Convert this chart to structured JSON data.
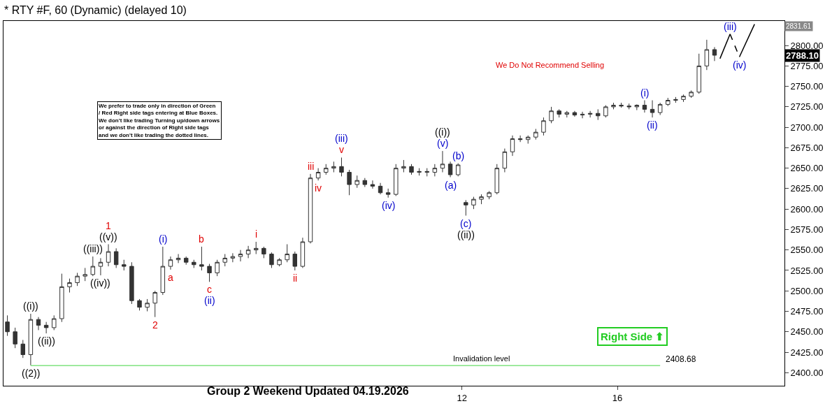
{
  "chart_data": {
    "type": "candlestick",
    "title": "* RTY #F, 60 (Dynamic) (delayed 10)",
    "x": [
      0.3,
      0.5,
      0.7,
      0.9,
      1.1,
      1.3,
      1.5,
      1.7,
      1.9,
      2.1,
      2.3,
      2.5,
      2.7,
      2.9,
      3.1,
      3.3,
      3.5,
      3.7,
      3.9,
      4.1,
      4.3,
      4.5,
      4.7,
      4.9,
      5.1,
      5.3,
      5.5,
      5.7,
      5.9,
      6.1,
      6.3,
      6.5,
      6.7,
      6.9,
      7.1,
      7.3,
      7.5,
      7.7,
      7.9,
      8.1,
      8.3,
      8.5,
      8.7,
      8.9,
      9.1,
      9.3,
      9.5,
      9.7,
      9.9,
      10.1,
      10.3,
      10.5,
      10.7,
      10.9,
      11.1,
      11.3,
      11.5,
      11.7,
      11.9,
      12.1,
      12.3,
      12.5,
      12.7,
      12.9,
      13.1,
      13.3,
      13.5,
      13.7,
      13.9,
      14.1,
      14.3,
      14.5,
      14.7,
      14.9,
      15.1,
      15.3,
      15.5,
      15.7,
      15.9,
      16.1,
      16.3,
      16.5,
      16.7,
      16.9,
      17.1,
      17.3,
      17.5,
      17.7,
      17.9,
      18.1,
      18.3,
      18.5
    ],
    "ohlc": [
      [
        2462,
        2470,
        2445,
        2450
      ],
      [
        2450,
        2455,
        2430,
        2435
      ],
      [
        2435,
        2440,
        2418,
        2422
      ],
      [
        2422,
        2472,
        2409,
        2465
      ],
      [
        2465,
        2468,
        2452,
        2458
      ],
      [
        2458,
        2462,
        2448,
        2455
      ],
      [
        2455,
        2470,
        2452,
        2466
      ],
      [
        2466,
        2521,
        2462,
        2505
      ],
      [
        2505,
        2515,
        2498,
        2510
      ],
      [
        2510,
        2522,
        2506,
        2518
      ],
      [
        2518,
        2528,
        2512,
        2520
      ],
      [
        2520,
        2542,
        2518,
        2530
      ],
      [
        2530,
        2540,
        2519,
        2535
      ],
      [
        2535,
        2557,
        2530,
        2548
      ],
      [
        2548,
        2552,
        2528,
        2532
      ],
      [
        2532,
        2538,
        2525,
        2530
      ],
      [
        2530,
        2535,
        2484,
        2488
      ],
      [
        2488,
        2490,
        2476,
        2480
      ],
      [
        2480,
        2490,
        2475,
        2485
      ],
      [
        2485,
        2500,
        2468,
        2498
      ],
      [
        2498,
        2554,
        2495,
        2530
      ],
      [
        2530,
        2542,
        2526,
        2538
      ],
      [
        2538,
        2545,
        2534,
        2540
      ],
      [
        2540,
        2542,
        2532,
        2535
      ],
      [
        2535,
        2538,
        2528,
        2532
      ],
      [
        2532,
        2554,
        2525,
        2530
      ],
      [
        2530,
        2533,
        2511,
        2522
      ],
      [
        2522,
        2538,
        2518,
        2535
      ],
      [
        2535,
        2545,
        2530,
        2540
      ],
      [
        2540,
        2546,
        2535,
        2542
      ],
      [
        2542,
        2550,
        2536,
        2545
      ],
      [
        2545,
        2555,
        2540,
        2550
      ],
      [
        2550,
        2560,
        2545,
        2552
      ],
      [
        2552,
        2554,
        2540,
        2545
      ],
      [
        2545,
        2547,
        2528,
        2532
      ],
      [
        2532,
        2540,
        2530,
        2538
      ],
      [
        2538,
        2557,
        2535,
        2545
      ],
      [
        2545,
        2548,
        2525,
        2530
      ],
      [
        2530,
        2565,
        2528,
        2560
      ],
      [
        2560,
        2643,
        2558,
        2638
      ],
      [
        2638,
        2650,
        2635,
        2645
      ],
      [
        2645,
        2655,
        2642,
        2650
      ],
      [
        2650,
        2658,
        2645,
        2652
      ],
      [
        2652,
        2663,
        2640,
        2645
      ],
      [
        2645,
        2648,
        2617,
        2630
      ],
      [
        2630,
        2641,
        2626,
        2635
      ],
      [
        2635,
        2638,
        2627,
        2630
      ],
      [
        2630,
        2635,
        2625,
        2628
      ],
      [
        2628,
        2632,
        2618,
        2620
      ],
      [
        2620,
        2625,
        2614,
        2618
      ],
      [
        2618,
        2655,
        2616,
        2650
      ],
      [
        2650,
        2660,
        2645,
        2652
      ],
      [
        2652,
        2655,
        2642,
        2645
      ],
      [
        2645,
        2650,
        2641,
        2646
      ],
      [
        2646,
        2650,
        2640,
        2645
      ],
      [
        2645,
        2655,
        2640,
        2650
      ],
      [
        2650,
        2671,
        2645,
        2655
      ],
      [
        2655,
        2658,
        2639,
        2642
      ],
      [
        2642,
        2656,
        2640,
        2654
      ],
      [
        2608,
        2611,
        2592,
        2605
      ],
      [
        2605,
        2615,
        2600,
        2612
      ],
      [
        2612,
        2618,
        2606,
        2615
      ],
      [
        2615,
        2622,
        2612,
        2620
      ],
      [
        2620,
        2655,
        2618,
        2650
      ],
      [
        2650,
        2674,
        2645,
        2670
      ],
      [
        2670,
        2690,
        2665,
        2686
      ],
      [
        2686,
        2690,
        2682,
        2685
      ],
      [
        2685,
        2690,
        2680,
        2688
      ],
      [
        2688,
        2698,
        2685,
        2694
      ],
      [
        2694,
        2712,
        2690,
        2708
      ],
      [
        2708,
        2725,
        2705,
        2720
      ],
      [
        2720,
        2722,
        2712,
        2716
      ],
      [
        2716,
        2720,
        2712,
        2718
      ],
      [
        2718,
        2720,
        2713,
        2715
      ],
      [
        2715,
        2719,
        2711,
        2716
      ],
      [
        2716,
        2720,
        2712,
        2717
      ],
      [
        2717,
        2722,
        2709,
        2714
      ],
      [
        2714,
        2727,
        2712,
        2725
      ],
      [
        2725,
        2730,
        2722,
        2727
      ],
      [
        2727,
        2730,
        2724,
        2726
      ],
      [
        2726,
        2729,
        2722,
        2725
      ],
      [
        2725,
        2728,
        2721,
        2727
      ],
      [
        2727,
        2733,
        2718,
        2722
      ],
      [
        2722,
        2733,
        2712,
        2718
      ],
      [
        2718,
        2730,
        2715,
        2728
      ],
      [
        2728,
        2736,
        2726,
        2733
      ],
      [
        2733,
        2737,
        2730,
        2734
      ],
      [
        2734,
        2740,
        2731,
        2738
      ],
      [
        2738,
        2745,
        2736,
        2743
      ],
      [
        2743,
        2790,
        2741,
        2775
      ],
      [
        2775,
        2807,
        2770,
        2795
      ],
      [
        2795,
        2798,
        2781,
        2788.1
      ]
    ],
    "color": "#333333",
    "series": [
      {
        "type": "line",
        "color": "#000000",
        "line_style": "solid",
        "x": [
          18.64,
          18.9
        ],
        "values": [
          2784,
          2814
        ]
      },
      {
        "type": "line",
        "color": "#000000",
        "line_style": "dashed",
        "x": [
          18.9,
          19.14
        ],
        "values": [
          2814,
          2786
        ]
      },
      {
        "type": "line",
        "color": "#000000",
        "line_style": "solid",
        "x": [
          19.14,
          19.53
        ],
        "values": [
          2786,
          2826
        ]
      }
    ],
    "xlim": [
      0.2,
      20.3
    ],
    "xticks": [
      12,
      16
    ],
    "ylim": [
      2384,
      2830
    ],
    "yticks": [
      {
        "value": 2400,
        "label": "2400.00"
      },
      {
        "value": 2425,
        "label": "2425.00"
      },
      {
        "value": 2450,
        "label": "2450.00"
      },
      {
        "value": 2475,
        "label": "2475.00"
      },
      {
        "value": 2500,
        "label": "2500.00"
      },
      {
        "value": 2525,
        "label": "2525.00"
      },
      {
        "value": 2550,
        "label": "2550.00"
      },
      {
        "value": 2575,
        "label": "2575.00"
      },
      {
        "value": 2600,
        "label": "2600.00"
      },
      {
        "value": 2625,
        "label": "2625.00"
      },
      {
        "value": 2650,
        "label": "2650.00"
      },
      {
        "value": 2675,
        "label": "2675.00"
      },
      {
        "value": 2700,
        "label": "2700.00"
      },
      {
        "value": 2725,
        "label": "2725.00"
      },
      {
        "value": 2750,
        "label": "2750.00"
      },
      {
        "value": 2775,
        "label": "2775.00"
      },
      {
        "value": 2800,
        "label": "2800.00"
      }
    ],
    "ref_lines": [
      {
        "axis": "y",
        "value": 2408.68,
        "label": "Invalidation level",
        "color": "#66dd66"
      }
    ],
    "annotations": [
      {
        "text": "((i))",
        "x": 0.9,
        "y": 2472
      },
      {
        "text": "((ii))",
        "x": 1.3,
        "y": 2448
      },
      {
        "text": "((2))",
        "x": 0.9,
        "y": 2409
      },
      {
        "text": "((iii))",
        "x": 2.5,
        "y": 2542
      },
      {
        "text": "((iv))",
        "x": 2.7,
        "y": 2519
      },
      {
        "text": "((v))",
        "x": 2.9,
        "y": 2557
      },
      {
        "text": "1",
        "x": 2.9,
        "y": 2557
      },
      {
        "text": "2",
        "x": 4.1,
        "y": 2468
      },
      {
        "text": "(i)",
        "x": 4.3,
        "y": 2554
      },
      {
        "text": "a",
        "x": 4.5,
        "y": 2526
      },
      {
        "text": "b",
        "x": 5.3,
        "y": 2554
      },
      {
        "text": "c",
        "x": 5.5,
        "y": 2511
      },
      {
        "text": "(ii)",
        "x": 5.5,
        "y": 2511
      },
      {
        "text": "i",
        "x": 6.7,
        "y": 2560
      },
      {
        "text": "ii",
        "x": 7.7,
        "y": 2525
      },
      {
        "text": "iii",
        "x": 8.1,
        "y": 2643
      },
      {
        "text": "iv",
        "x": 8.3,
        "y": 2635
      },
      {
        "text": "v",
        "x": 8.9,
        "y": 2663
      },
      {
        "text": "(iii)",
        "x": 8.9,
        "y": 2663
      },
      {
        "text": "(iv)",
        "x": 10.1,
        "y": 2614
      },
      {
        "text": "(v)",
        "x": 11.5,
        "y": 2671
      },
      {
        "text": "((i))",
        "x": 11.5,
        "y": 2671
      },
      {
        "text": "(a)",
        "x": 11.7,
        "y": 2639
      },
      {
        "text": "(b)",
        "x": 11.9,
        "y": 2656
      },
      {
        "text": "(c)",
        "x": 12.1,
        "y": 2592
      },
      {
        "text": "((ii))",
        "x": 12.1,
        "y": 2592
      },
      {
        "text": "(i)",
        "x": 16.7,
        "y": 2733
      },
      {
        "text": "(ii)",
        "x": 16.9,
        "y": 2712
      },
      {
        "text": "(iii)",
        "x": 18.9,
        "y": 2814
      },
      {
        "text": "(iv)",
        "x": 19.14,
        "y": 2786
      },
      "2408.68",
      "We Do Not Recommend Selling",
      "We prefer to trade only in direction of Green / Red Right side tags entering at Blue Boxes. We don't like trading Turning up/down arrows or against the direction of Right side tags and we don't like trading the dotted lines.",
      "Right Side ⬆",
      "Group 2 Weekend Updated 04.19.2026",
      "2831.61",
      "2788.10"
    ]
  }
}
